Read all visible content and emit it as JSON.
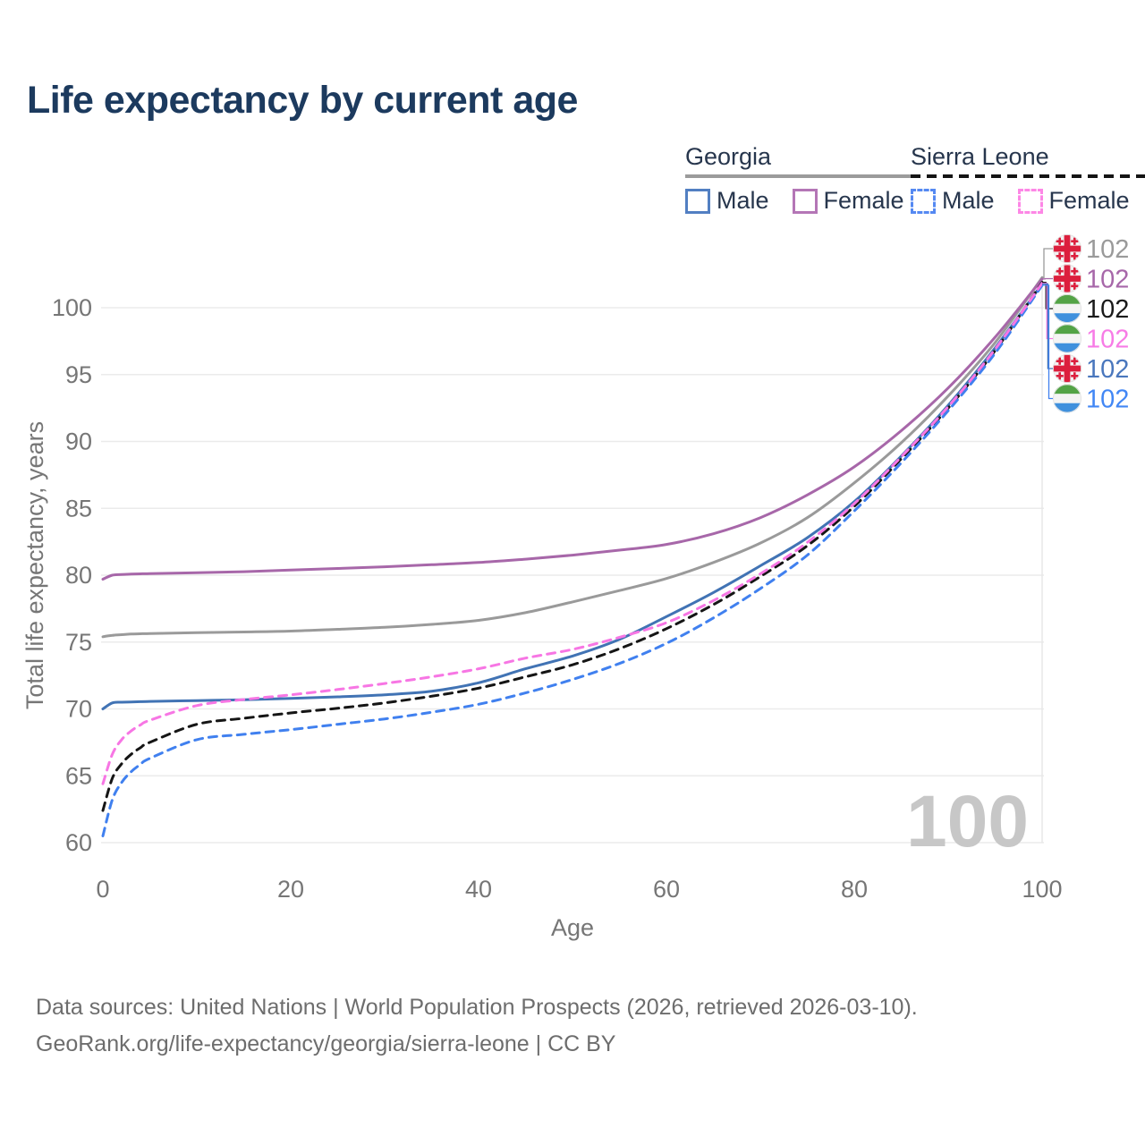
{
  "title": "Life expectancy by current age",
  "legend": {
    "groups": [
      {
        "id": "georgia",
        "label": "Georgia",
        "line_style": "solid",
        "line_color": "#9b9b9b",
        "items": [
          {
            "id": "georgia-male",
            "label": "Male",
            "color": "#527fc2",
            "style": "solid"
          },
          {
            "id": "georgia-female",
            "label": "Female",
            "color": "#b476b6",
            "style": "solid"
          }
        ]
      },
      {
        "id": "sierra-leone",
        "label": "Sierra Leone",
        "line_style": "dashed",
        "line_color": "#141414",
        "items": [
          {
            "id": "sierra-leone-male",
            "label": "Male",
            "color": "#5589f2",
            "style": "dashed"
          },
          {
            "id": "sierra-leone-female",
            "label": "Female",
            "color": "#fd87e6",
            "style": "dashed"
          }
        ]
      }
    ]
  },
  "chart_data": {
    "type": "line",
    "title": "Life expectancy by current age",
    "xlabel": "Age",
    "ylabel": "Total life expectancy, years",
    "xlim": [
      0,
      100
    ],
    "ylim": [
      60,
      103
    ],
    "x_ticks": [
      0,
      20,
      40,
      60,
      80,
      100
    ],
    "y_ticks": [
      60,
      65,
      70,
      75,
      80,
      85,
      90,
      95,
      100
    ],
    "grid": "horizontal",
    "legend_position": "top-right",
    "cursor_age": 100,
    "cursor_label": "100",
    "x": [
      0,
      1,
      2,
      3,
      4,
      5,
      10,
      15,
      20,
      25,
      30,
      35,
      40,
      45,
      50,
      55,
      60,
      65,
      70,
      75,
      80,
      85,
      90,
      95,
      100
    ],
    "series": [
      {
        "id": "georgia",
        "name": "Georgia",
        "country": "Georgia",
        "sex": "both",
        "flag": "georgia",
        "color": "#9a9a9a",
        "dash": "solid",
        "end_label": "102",
        "label_color": "#9a9a9a",
        "values": [
          75.4,
          75.5,
          75.55,
          75.6,
          75.62,
          75.64,
          75.7,
          75.75,
          75.82,
          75.95,
          76.1,
          76.32,
          76.62,
          77.2,
          78.0,
          78.85,
          79.75,
          80.95,
          82.4,
          84.3,
          86.9,
          89.9,
          93.4,
          97.4,
          102.25
        ]
      },
      {
        "id": "georgia-female",
        "name": "Female",
        "country": "Georgia",
        "sex": "female",
        "flag": "georgia",
        "color": "#a767a9",
        "dash": "solid",
        "end_label": "102",
        "label_color": "#a767a9",
        "values": [
          79.7,
          80.0,
          80.05,
          80.08,
          80.1,
          80.12,
          80.18,
          80.26,
          80.38,
          80.5,
          80.63,
          80.78,
          80.95,
          81.2,
          81.5,
          81.87,
          82.3,
          83.1,
          84.3,
          86.0,
          88.1,
          90.8,
          94.0,
          97.8,
          102.15
        ]
      },
      {
        "id": "sierra-leone",
        "name": "Sierra Leone",
        "country": "Sierra Leone",
        "sex": "both",
        "flag": "sierra-leone",
        "color": "#151515",
        "dash": "dashed",
        "end_label": "102",
        "label_color": "#1a1a1a",
        "values": [
          62.4,
          64.8,
          65.9,
          66.6,
          67.1,
          67.5,
          68.85,
          69.3,
          69.7,
          70.05,
          70.45,
          70.95,
          71.55,
          72.4,
          73.3,
          74.5,
          76.0,
          77.8,
          79.9,
          82.2,
          85.15,
          88.7,
          92.5,
          96.8,
          101.9
        ]
      },
      {
        "id": "sierra-leone-female",
        "name": "Female",
        "country": "Sierra Leone",
        "sex": "female",
        "flag": "sierra-leone",
        "color": "#f776e4",
        "dash": "dashed",
        "end_label": "102",
        "label_color": "#f77ce6",
        "values": [
          64.4,
          66.6,
          67.7,
          68.35,
          68.8,
          69.15,
          70.25,
          70.7,
          71.05,
          71.45,
          71.9,
          72.4,
          73.0,
          73.8,
          74.45,
          75.35,
          76.45,
          78.1,
          80.1,
          82.45,
          85.35,
          88.85,
          92.6,
          96.9,
          101.83
        ]
      },
      {
        "id": "georgia-male",
        "name": "Male",
        "country": "Georgia",
        "sex": "male",
        "flag": "georgia",
        "color": "#4173b4",
        "dash": "solid",
        "end_label": "102",
        "label_color": "#4a77bd",
        "values": [
          70.0,
          70.45,
          70.5,
          70.52,
          70.54,
          70.56,
          70.62,
          70.68,
          70.78,
          70.9,
          71.06,
          71.32,
          71.95,
          73.0,
          73.95,
          75.2,
          76.9,
          78.7,
          80.7,
          82.8,
          85.5,
          88.9,
          92.7,
          97.0,
          101.78
        ]
      },
      {
        "id": "sierra-leone-male",
        "name": "Male",
        "country": "Sierra Leone",
        "sex": "male",
        "flag": "sierra-leone",
        "color": "#4080ef",
        "dash": "dashed",
        "end_label": "102",
        "label_color": "#4287f5",
        "values": [
          60.5,
          63.2,
          64.5,
          65.3,
          65.85,
          66.3,
          67.7,
          68.1,
          68.45,
          68.85,
          69.25,
          69.75,
          70.35,
          71.2,
          72.2,
          73.4,
          74.9,
          76.8,
          79.0,
          81.5,
          84.8,
          88.4,
          92.3,
          96.6,
          101.68
        ]
      }
    ],
    "flag_colors": {
      "georgia_red": "#dc1f3d",
      "georgia_bg": "#f2f2f2",
      "sl_green": "#53a346",
      "sl_white": "#f4f4f4",
      "sl_blue": "#3f90dd"
    }
  },
  "footer": {
    "line1": "Data sources: United Nations | World Population Prospects (2026, retrieved 2026-03-10).",
    "line2": "GeoRank.org/life-expectancy/georgia/sierra-leone | CC BY"
  }
}
